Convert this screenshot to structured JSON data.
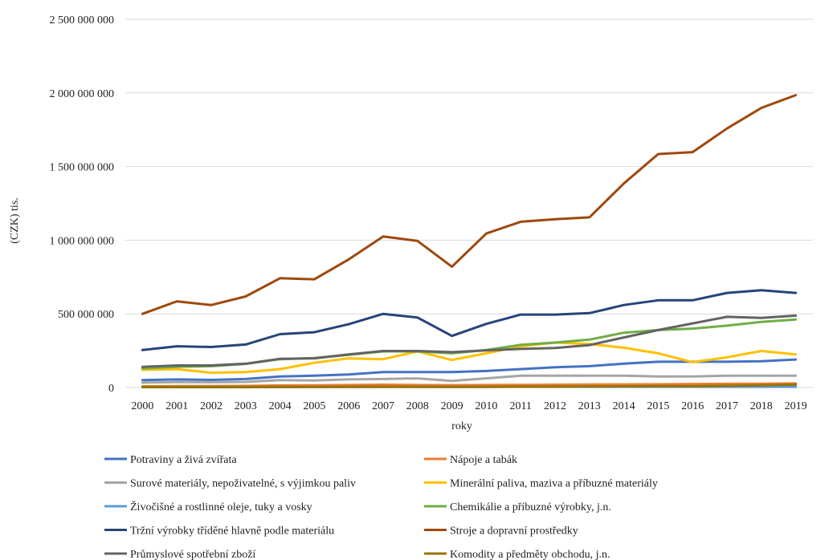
{
  "chart_data": {
    "type": "line",
    "title": "",
    "xlabel": "roky",
    "ylabel": "(CZK) tis.",
    "ylim": [
      0,
      2500000000
    ],
    "yticks": [
      0,
      500000000,
      1000000000,
      1500000000,
      2000000000,
      2500000000
    ],
    "ytick_labels": [
      "0",
      "500 000 000",
      "1 000 000 000",
      "1 500 000 000",
      "2 000 000 000",
      "2 500 000 000"
    ],
    "grid": "horizontal",
    "legend_position": "bottom",
    "x": [
      "2000",
      "2001",
      "2002",
      "2003",
      "2004",
      "2005",
      "2006",
      "2007",
      "2008",
      "2009",
      "2010",
      "2011",
      "2012",
      "2013",
      "2014",
      "2015",
      "2016",
      "2017",
      "2018",
      "2019"
    ],
    "series": [
      {
        "name": "Potraviny a živá zvířata",
        "color": "#4472C4",
        "values": [
          50000000,
          55000000,
          52000000,
          58000000,
          75000000,
          80000000,
          88000000,
          105000000,
          105000000,
          105000000,
          112000000,
          125000000,
          138000000,
          145000000,
          162000000,
          175000000,
          175000000,
          175000000,
          178000000,
          190000000
        ]
      },
      {
        "name": "Nápoje a tabák",
        "color": "#ED7D31",
        "values": [
          8000000,
          9000000,
          10000000,
          11000000,
          14000000,
          15000000,
          17000000,
          19000000,
          17000000,
          16000000,
          17000000,
          18000000,
          19000000,
          20000000,
          21000000,
          22000000,
          24000000,
          25000000,
          26000000,
          28000000
        ]
      },
      {
        "name": "Surové materiály, nepoživatelné, s výjimkou paliv",
        "color": "#A5A5A5",
        "values": [
          33000000,
          37000000,
          36000000,
          38000000,
          50000000,
          48000000,
          55000000,
          58000000,
          62000000,
          45000000,
          62000000,
          80000000,
          80000000,
          80000000,
          80000000,
          75000000,
          75000000,
          80000000,
          80000000,
          80000000
        ]
      },
      {
        "name": "Minerální paliva, maziva a příbuzné materiály",
        "color": "#FFC000",
        "values": [
          120000000,
          125000000,
          100000000,
          105000000,
          125000000,
          168000000,
          198000000,
          192000000,
          245000000,
          187000000,
          232000000,
          280000000,
          305000000,
          295000000,
          270000000,
          232000000,
          172000000,
          205000000,
          248000000,
          225000000
        ]
      },
      {
        "name": "Živočišné a rostlinné oleje, tuky a vosky",
        "color": "#5B9BD5",
        "values": [
          2000000,
          2000000,
          2000000,
          2000000,
          3000000,
          3000000,
          3000000,
          4000000,
          4000000,
          4000000,
          4000000,
          5000000,
          5000000,
          5000000,
          5000000,
          5000000,
          5000000,
          5000000,
          5000000,
          5000000
        ]
      },
      {
        "name": "Chemikálie a příbuzné výrobky, j.n.",
        "color": "#70AD47",
        "values": [
          130000000,
          140000000,
          145000000,
          160000000,
          192000000,
          200000000,
          222000000,
          245000000,
          245000000,
          232000000,
          255000000,
          290000000,
          305000000,
          325000000,
          372000000,
          390000000,
          400000000,
          420000000,
          445000000,
          462000000
        ]
      },
      {
        "name": "Tržní výrobky tříděné hlavně podle materiálu",
        "color": "#264478",
        "values": [
          255000000,
          280000000,
          275000000,
          292000000,
          362000000,
          375000000,
          430000000,
          500000000,
          475000000,
          350000000,
          432000000,
          495000000,
          495000000,
          505000000,
          560000000,
          592000000,
          592000000,
          642000000,
          660000000,
          642000000
        ]
      },
      {
        "name": "Stroje a dopravní prostředky",
        "color": "#9E480E",
        "values": [
          500000000,
          585000000,
          560000000,
          618000000,
          742000000,
          735000000,
          870000000,
          1025000000,
          995000000,
          820000000,
          1045000000,
          1125000000,
          1142000000,
          1155000000,
          1385000000,
          1585000000,
          1598000000,
          1758000000,
          1898000000,
          1985000000
        ]
      },
      {
        "name": "Průmyslové spotřební zboží",
        "color": "#636363",
        "values": [
          140000000,
          150000000,
          150000000,
          162000000,
          195000000,
          198000000,
          225000000,
          248000000,
          248000000,
          240000000,
          252000000,
          262000000,
          268000000,
          288000000,
          340000000,
          390000000,
          435000000,
          480000000,
          472000000,
          488000000
        ]
      },
      {
        "name": "Komodity a předměty obchodu, j.n.",
        "color": "#997300",
        "values": [
          3000000,
          3000000,
          3000000,
          3000000,
          4000000,
          4000000,
          5000000,
          5000000,
          5000000,
          4000000,
          5000000,
          6000000,
          6000000,
          7000000,
          8000000,
          10000000,
          10000000,
          12000000,
          15000000,
          20000000
        ]
      }
    ]
  }
}
